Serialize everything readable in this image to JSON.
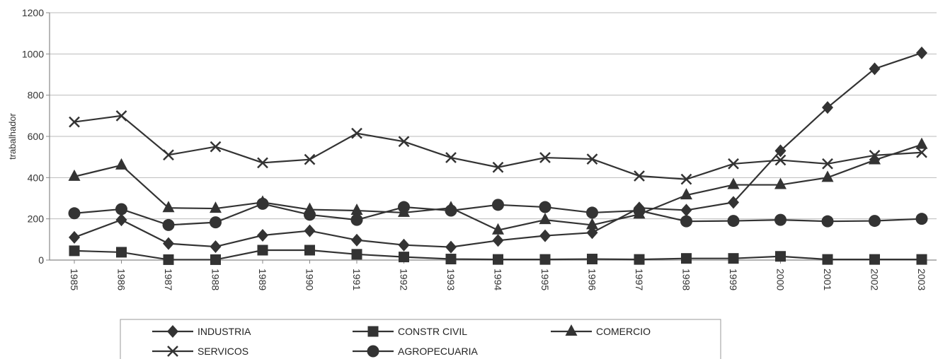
{
  "chart_data": {
    "type": "line",
    "title": "",
    "xlabel": "",
    "ylabel": "trabalhador",
    "ylim": [
      0,
      1200
    ],
    "yticks": [
      0,
      200,
      400,
      600,
      800,
      1000,
      1200
    ],
    "grid": true,
    "legend_position": "bottom",
    "categories": [
      "1985",
      "1986",
      "1987",
      "1988",
      "1989",
      "1990",
      "1991",
      "1992",
      "1993",
      "1994",
      "1995",
      "1996",
      "1997",
      "1998",
      "1999",
      "2000",
      "2001",
      "2002",
      "2003"
    ],
    "series": [
      {
        "name": "INDUSTRIA",
        "marker": "diamond",
        "values": [
          110,
          195,
          80,
          65,
          120,
          142,
          97,
          73,
          63,
          95,
          118,
          133,
          253,
          242,
          280,
          530,
          740,
          928,
          1005
        ]
      },
      {
        "name": "CONSTR CIVIL",
        "marker": "square",
        "values": [
          45,
          38,
          2,
          2,
          48,
          48,
          28,
          15,
          5,
          3,
          3,
          5,
          3,
          8,
          8,
          18,
          3,
          3,
          3
        ]
      },
      {
        "name": "COMERCIO",
        "marker": "triangle",
        "values": [
          405,
          460,
          253,
          250,
          280,
          245,
          240,
          230,
          253,
          145,
          195,
          170,
          222,
          315,
          365,
          365,
          400,
          485,
          560
        ]
      },
      {
        "name": "SERVICOS",
        "marker": "cross",
        "values": [
          670,
          700,
          510,
          550,
          472,
          488,
          615,
          575,
          497,
          450,
          497,
          490,
          408,
          392,
          467,
          485,
          467,
          508,
          522
        ]
      },
      {
        "name": "AGROPECUARIA",
        "marker": "circle",
        "values": [
          227,
          247,
          170,
          183,
          273,
          220,
          195,
          257,
          240,
          268,
          257,
          230,
          240,
          188,
          190,
          195,
          188,
          190,
          200
        ]
      }
    ]
  },
  "colors": {
    "line": "#333333",
    "grid": "#bbbbbb",
    "axis": "#888888"
  }
}
